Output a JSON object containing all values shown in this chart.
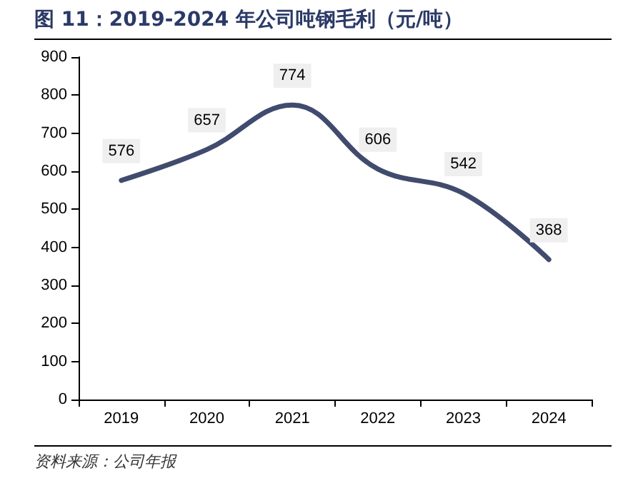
{
  "chart_data": {
    "type": "line",
    "title": "图 11：2019-2024 年公司吨钢毛利（元/吨）",
    "categories": [
      "2019",
      "2020",
      "2021",
      "2022",
      "2023",
      "2024"
    ],
    "series": [
      {
        "color": "#404b6e",
        "values": [
          576,
          657,
          774,
          606,
          542,
          368
        ]
      }
    ],
    "ylim": [
      0,
      900
    ],
    "yticks": [
      0,
      100,
      200,
      300,
      400,
      500,
      600,
      700,
      800,
      900
    ],
    "grid": false,
    "marker": "none",
    "line_style": "solid",
    "data_labels": true,
    "annotations": [
      "资料来源：公司年报"
    ]
  }
}
